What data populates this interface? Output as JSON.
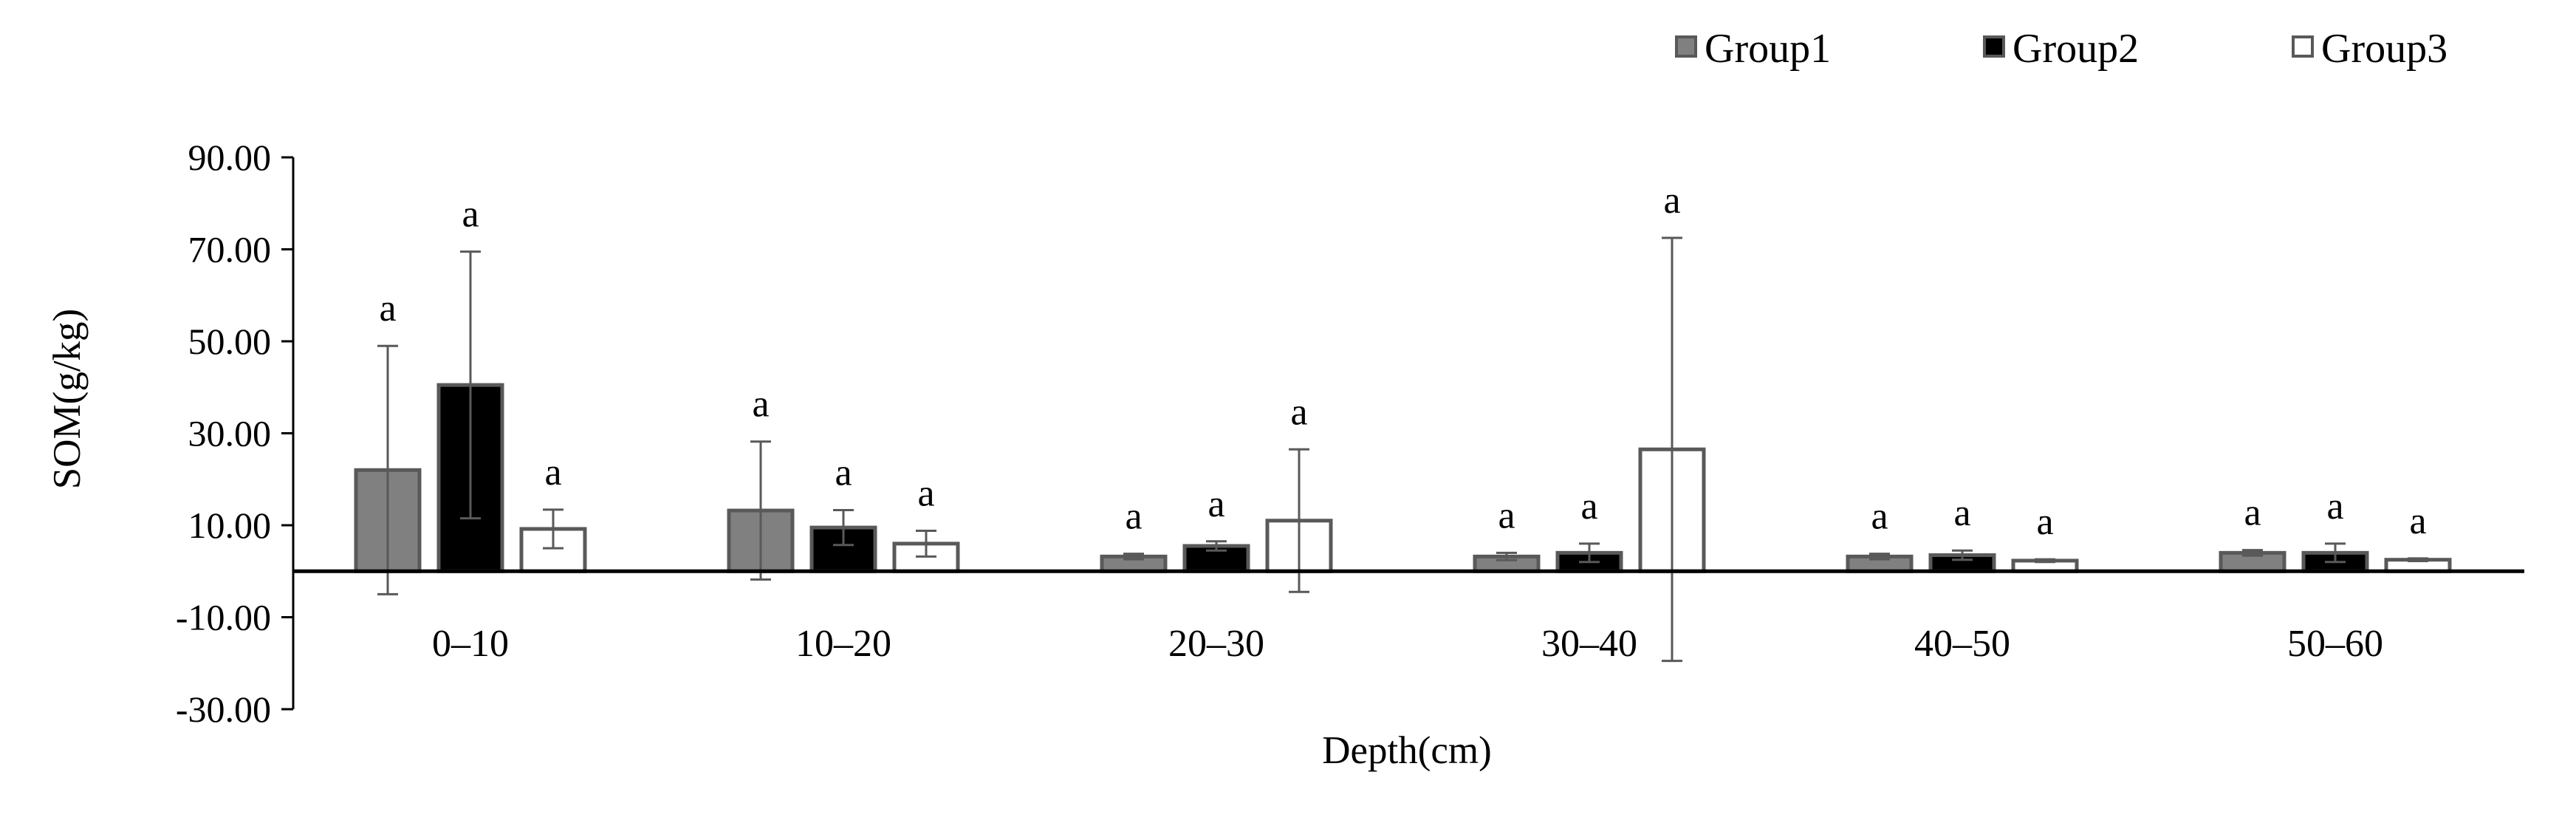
{
  "chart_data": {
    "type": "bar",
    "xlabel": "Depth(cm)",
    "ylabel": "SOM(g/kg)",
    "ylim": [
      -30,
      90
    ],
    "yticks": [
      90,
      70,
      50,
      30,
      10,
      -10,
      -30
    ],
    "ytick_labels": [
      "90.00",
      "70.00",
      "50.00",
      "30.00",
      "10.00",
      "-10.00",
      "-30.00"
    ],
    "grid": false,
    "legend_position": "top-right",
    "categories": [
      "0–10",
      "10–20",
      "20–30",
      "30–40",
      "40–50",
      "50–60"
    ],
    "series": [
      {
        "name": "Group1",
        "color": "#808080",
        "edge": "#595959",
        "values": [
          22.0,
          13.2,
          3.2,
          3.2,
          3.2,
          4.0
        ],
        "errors": [
          27.0,
          15.0,
          0.6,
          0.8,
          0.6,
          0.6
        ],
        "labels": [
          "a",
          "a",
          "a",
          "a",
          "a",
          "a"
        ]
      },
      {
        "name": "Group2",
        "color": "#000000",
        "edge": "#595959",
        "values": [
          40.5,
          9.5,
          5.5,
          4.0,
          3.5,
          4.0
        ],
        "errors": [
          29.0,
          3.8,
          1.0,
          2.0,
          1.0,
          2.0
        ],
        "labels": [
          "a",
          "a",
          "a",
          "a",
          "a",
          "a"
        ]
      },
      {
        "name": "Group3",
        "color": "#ffffff",
        "edge": "#595959",
        "values": [
          9.2,
          6.0,
          11.0,
          26.5,
          2.3,
          2.5
        ],
        "errors": [
          4.2,
          2.8,
          15.5,
          46.0,
          0.3,
          0.3
        ],
        "labels": [
          "a",
          "a",
          "a",
          "a",
          "a",
          "a"
        ]
      }
    ]
  }
}
